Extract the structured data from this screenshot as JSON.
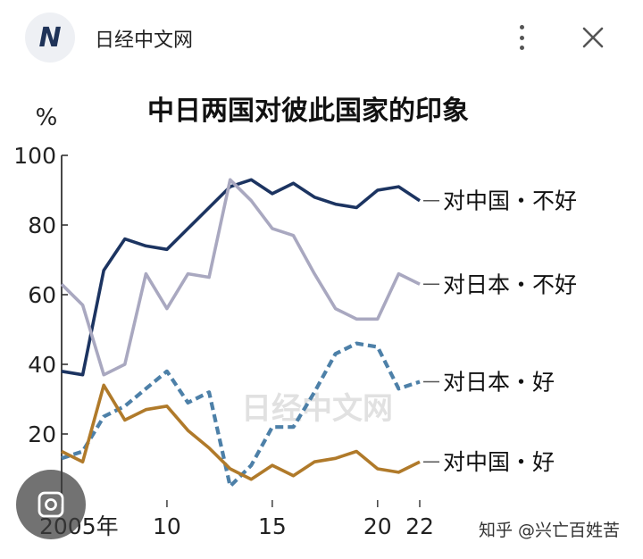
{
  "header": {
    "logo_letter": "N",
    "title": "日经中文网"
  },
  "colors": {
    "china_bad": "#1c3461",
    "japan_bad": "#a9a8c0",
    "japan_good": "#4d80a8",
    "china_good": "#b07a2a"
  },
  "chart_data": {
    "type": "line",
    "title": "中日两国对彼此国家的印象",
    "ylabel": "%",
    "ylim": [
      0,
      100
    ],
    "yticks": [
      20,
      40,
      60,
      80,
      100
    ],
    "xlim": [
      2005,
      2022
    ],
    "xtick_labels": [
      {
        "x": 2005,
        "label": "2005年"
      },
      {
        "x": 2010,
        "label": "10"
      },
      {
        "x": 2015,
        "label": "15"
      },
      {
        "x": 2020,
        "label": "20"
      },
      {
        "x": 2022,
        "label": "22"
      }
    ],
    "watermark": "日经中文网",
    "credit": "知乎 @兴亡百姓苦",
    "series": [
      {
        "name": "对中国・不好",
        "style": "solid",
        "color": "#1c3461",
        "x": [
          2005,
          2006,
          2007,
          2008,
          2009,
          2010,
          2011,
          2012,
          2013,
          2014,
          2015,
          2016,
          2017,
          2018,
          2019,
          2020,
          2021,
          2022
        ],
        "y": [
          38,
          37,
          67,
          76,
          74,
          73,
          79,
          85,
          91,
          93,
          89,
          92,
          88,
          86,
          85,
          90,
          91,
          87
        ]
      },
      {
        "name": "对日本・不好",
        "style": "solid",
        "color": "#a9a8c0",
        "x": [
          2005,
          2006,
          2007,
          2008,
          2009,
          2010,
          2011,
          2012,
          2013,
          2014,
          2015,
          2016,
          2017,
          2018,
          2019,
          2020,
          2021,
          2022
        ],
        "y": [
          63,
          57,
          37,
          40,
          66,
          56,
          66,
          65,
          93,
          87,
          79,
          77,
          66,
          56,
          53,
          53,
          66,
          63
        ]
      },
      {
        "name": "对日本・好",
        "style": "dashed",
        "color": "#4d80a8",
        "x": [
          2005,
          2006,
          2007,
          2008,
          2009,
          2010,
          2011,
          2012,
          2013,
          2014,
          2015,
          2016,
          2017,
          2018,
          2019,
          2020,
          2021,
          2022
        ],
        "y": [
          13,
          15,
          25,
          28,
          33,
          38,
          29,
          32,
          5,
          11,
          22,
          22,
          32,
          43,
          46,
          45,
          33,
          35
        ]
      },
      {
        "name": "对中国・好",
        "style": "solid",
        "color": "#b07a2a",
        "x": [
          2005,
          2006,
          2007,
          2008,
          2009,
          2010,
          2011,
          2012,
          2013,
          2014,
          2015,
          2016,
          2017,
          2018,
          2019,
          2020,
          2021,
          2022
        ],
        "y": [
          15,
          12,
          34,
          24,
          27,
          28,
          21,
          16,
          10,
          7,
          11,
          8,
          12,
          13,
          15,
          10,
          9,
          12
        ]
      }
    ]
  }
}
